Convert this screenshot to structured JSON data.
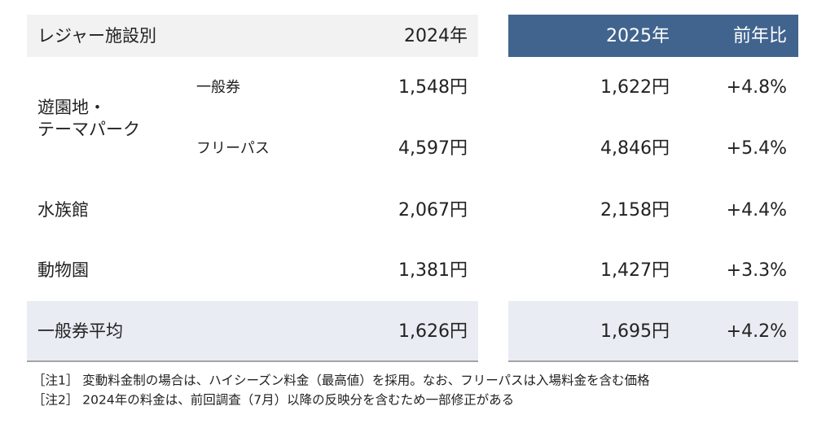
{
  "table": {
    "header": [
      "レジャー施設別",
      "2024年",
      "2025年",
      "前年比"
    ],
    "group": {
      "label": [
        "遊園地・",
        "テーマパーク"
      ],
      "rows": [
        {
          "sub": "一般券",
          "y2024": "1,548円",
          "y2025": "1,622円",
          "change": "+4.8%"
        },
        {
          "sub": "フリーパス",
          "y2024": "4,597円",
          "y2025": "4,846円",
          "change": "+5.4%"
        }
      ]
    },
    "rows": [
      {
        "label": "水族館",
        "y2024": "2,067円",
        "y2025": "2,158円",
        "change": "+4.4%"
      },
      {
        "label": "動物園",
        "y2024": "1,381円",
        "y2025": "1,427円",
        "change": "+3.3%"
      }
    ],
    "average": {
      "label": "一般券平均",
      "y2024": "1,626円",
      "y2025": "1,695円",
      "change": "+4.2%"
    }
  },
  "notes": [
    "［注1］ 変動料金制の場合は、ハイシーズン料金（最高値）を採用。なお、フリーパスは入場料金を含む価格",
    "［注2］ 2024年の料金は、前回調査（7月）以降の反映分を含むため一部修正がある"
  ]
}
